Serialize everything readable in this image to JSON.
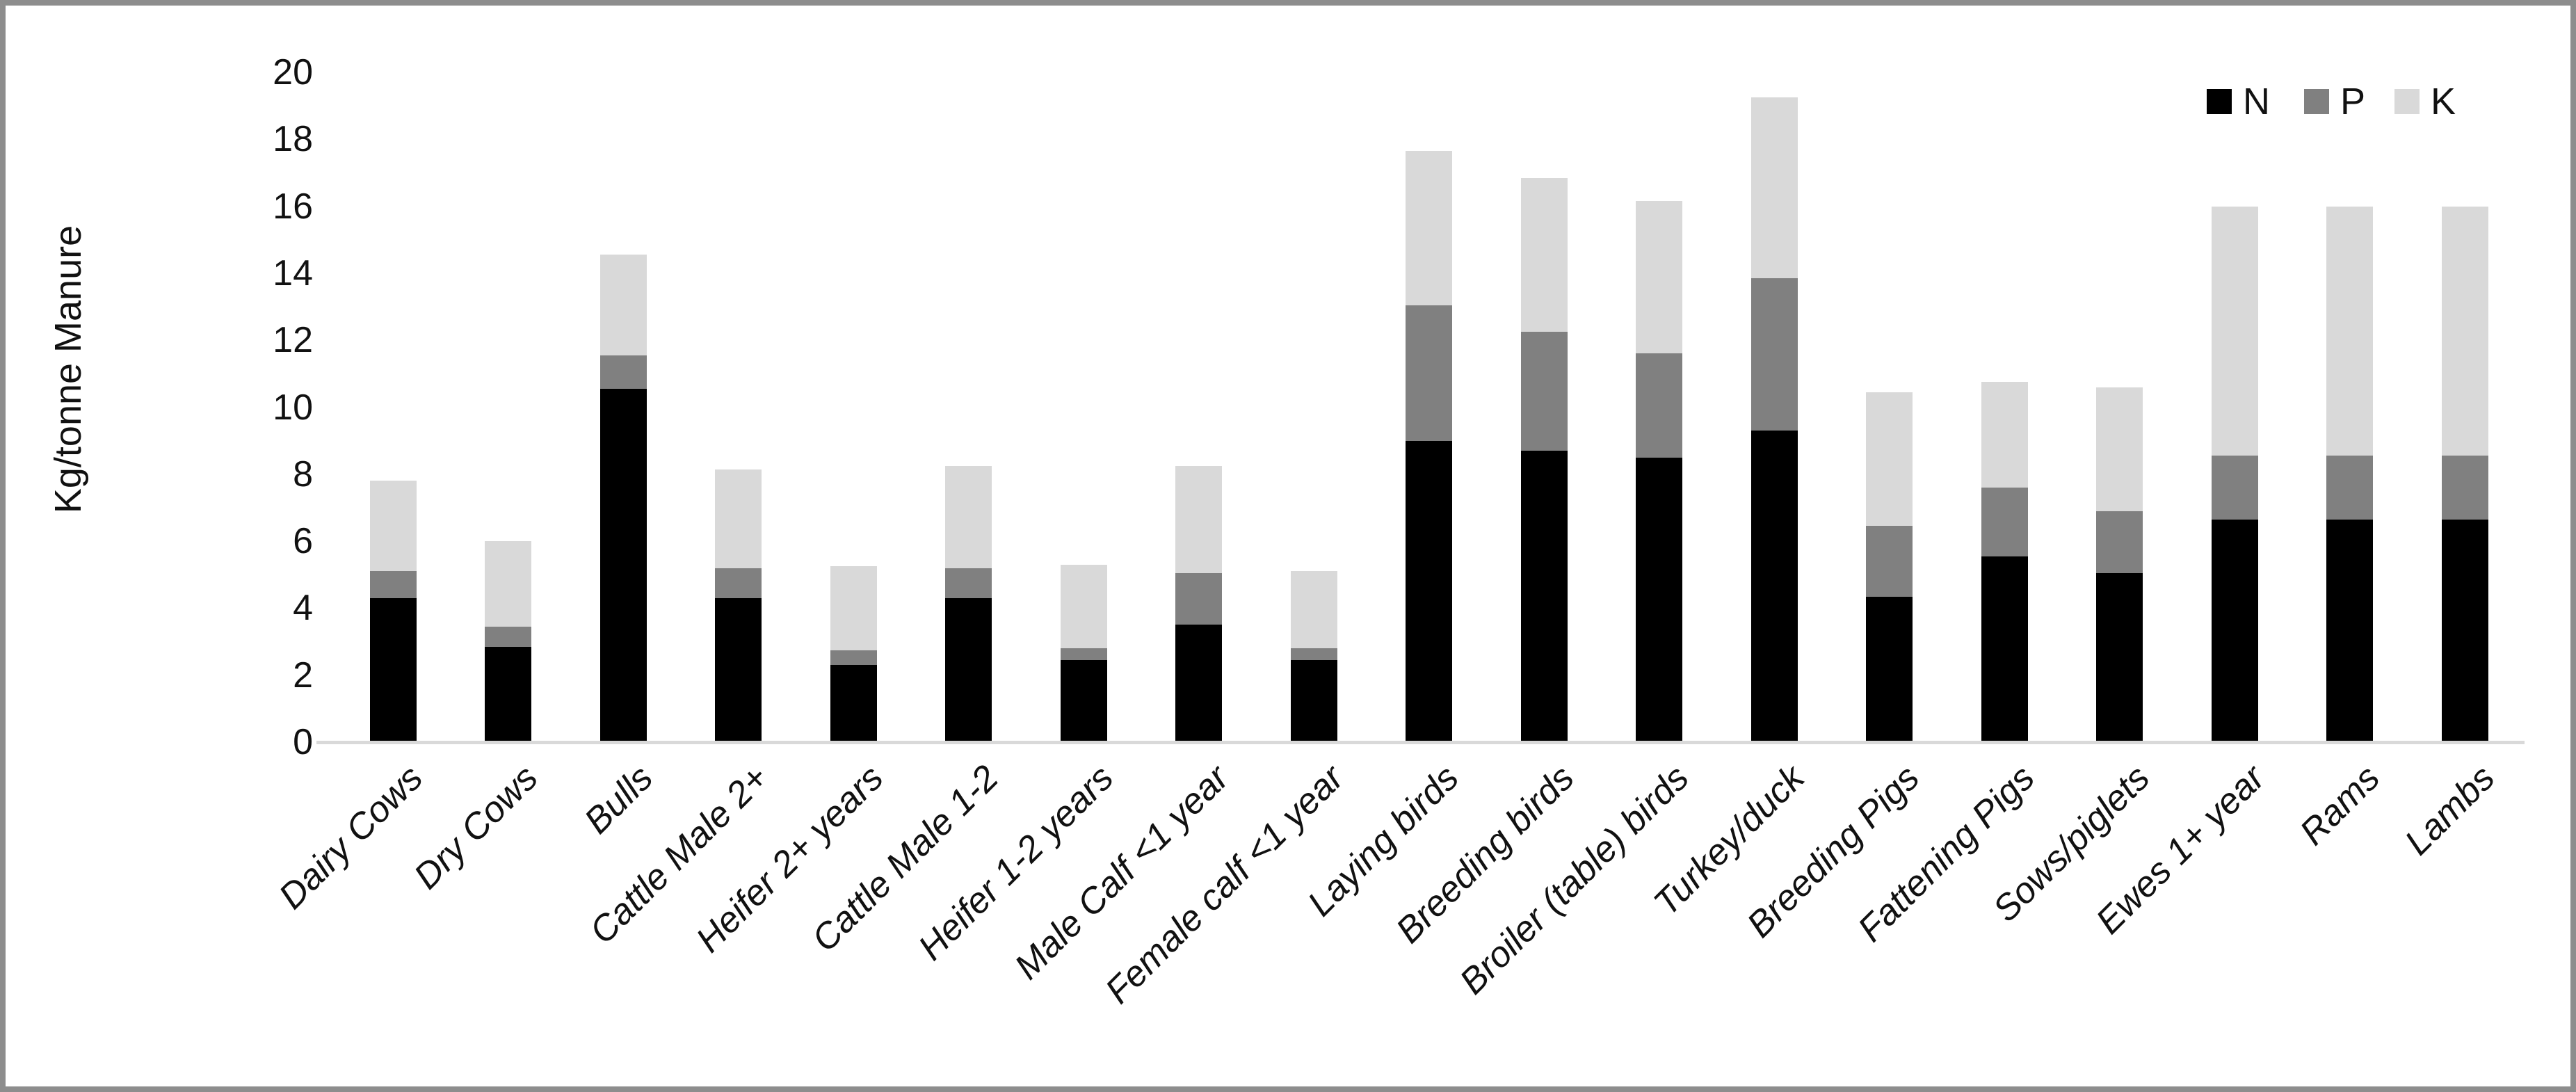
{
  "chart_data": {
    "type": "bar",
    "subtype": "stacked-column",
    "title": "",
    "ylabel": "Kg/tonne Manure",
    "xlabel": "",
    "ylim": [
      0,
      20
    ],
    "y_tick_step": 2,
    "y_tick_labels": [
      "0",
      "2",
      "4",
      "6",
      "8",
      "10",
      "12",
      "14",
      "16",
      "18",
      "20"
    ],
    "grid": "off",
    "x_label_rotation_deg": 45,
    "legend_position": "top-right",
    "axis_line_color": "#d9d9d9",
    "frame_color": "#8d8d8d",
    "categories": [
      "Dairy Cows",
      "Dry Cows",
      "Bulls",
      "Cattle Male 2+",
      "Heifer 2+ years",
      "Cattle Male 1-2",
      "Heifer 1-2 years",
      "Male Calf <1 year",
      "Female calf <1 year",
      "Laying birds",
      "Breeding birds",
      "Broiler (table) birds",
      "Turkey/duck",
      "Breeding Pigs",
      "Fattening Pigs",
      "Sows/piglets",
      "Ewes 1+ year",
      "Rams",
      "Lambs"
    ],
    "series": [
      {
        "name": "N",
        "color": "#000000",
        "values": [
          4.3,
          2.85,
          10.55,
          4.3,
          2.3,
          4.3,
          2.45,
          3.5,
          2.45,
          9.0,
          8.7,
          8.5,
          9.3,
          4.35,
          5.55,
          5.05,
          6.65,
          6.65,
          6.65
        ]
      },
      {
        "name": "P",
        "color": "#808080",
        "values": [
          0.8,
          0.6,
          1.0,
          0.9,
          0.45,
          0.9,
          0.35,
          1.55,
          0.35,
          4.05,
          3.55,
          3.1,
          4.55,
          2.1,
          2.05,
          1.85,
          1.9,
          1.9,
          1.9
        ]
      },
      {
        "name": "K",
        "color": "#d9d9d9",
        "values": [
          2.7,
          2.55,
          3.0,
          2.95,
          2.5,
          3.05,
          2.5,
          3.2,
          2.3,
          4.6,
          4.6,
          4.55,
          5.4,
          4.0,
          3.15,
          3.7,
          7.45,
          7.45,
          7.45
        ]
      }
    ]
  }
}
